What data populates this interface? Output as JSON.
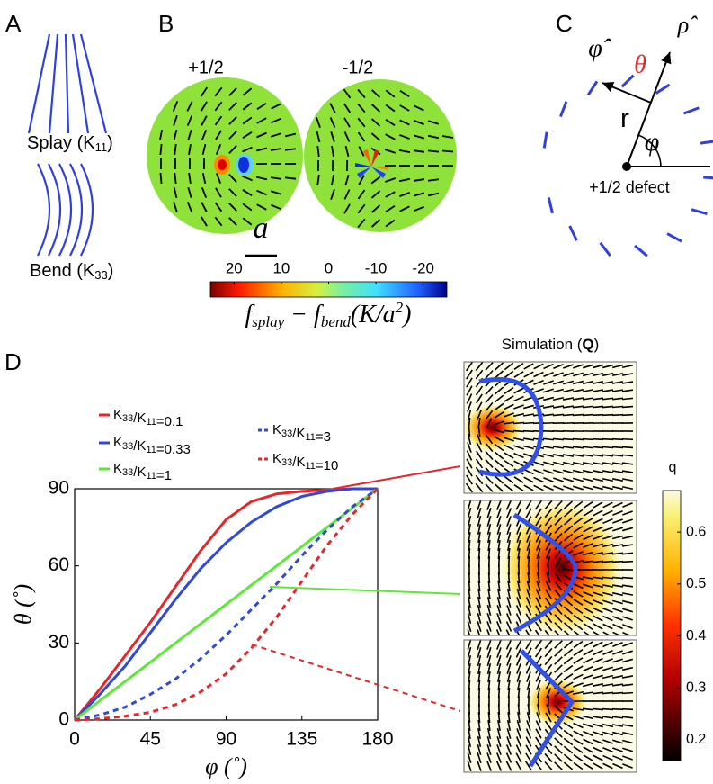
{
  "panel_a": {
    "label": "A",
    "splay_label": [
      "Splay (K",
      "11",
      ")"
    ],
    "bend_label": [
      "Bend (K",
      "33",
      ")"
    ]
  },
  "panel_b": {
    "label": "B",
    "titles": [
      "+1/2",
      "-1/2"
    ],
    "scale_label": "a",
    "colorbar": {
      "ticks": [
        20,
        10,
        0,
        -10,
        -20
      ],
      "lim": [
        25,
        -25
      ],
      "label": [
        "f",
        "splay",
        " − f",
        "bend",
        "(K/a",
        "2",
        ")"
      ]
    }
  },
  "panel_c": {
    "label": "C",
    "phi_hat": "φ̂",
    "theta": "θ",
    "rho_hat": "ρ̂",
    "r": "r",
    "phi": "φ",
    "defect": "+1/2 defect"
  },
  "panel_d": {
    "label": "D",
    "simulation_title": [
      "Simulation (",
      "Q",
      ")"
    ],
    "colorbar": {
      "label": "q",
      "ticks": [
        0.2,
        0.3,
        0.4,
        0.5,
        0.6
      ],
      "lim": [
        0.16,
        0.68
      ]
    }
  },
  "chart_data": {
    "type": "line",
    "xlabel": "φ (˚)",
    "ylabel": "θ (˚)",
    "x": [
      0,
      15,
      30,
      45,
      60,
      75,
      90,
      105,
      120,
      135,
      150,
      165,
      180
    ],
    "xlim": [
      0,
      180
    ],
    "xticks": [
      0,
      45,
      90,
      135,
      180
    ],
    "ylim": [
      0,
      90
    ],
    "yticks": [
      0,
      30,
      60,
      90
    ],
    "series": [
      {
        "name": "K33/K11=0.1",
        "color": "#e8262a",
        "style": "solid",
        "values": [
          0,
          12,
          25,
          38,
          52,
          66,
          78,
          85,
          88,
          89,
          89.5,
          90,
          90
        ]
      },
      {
        "name": "K33/K11=0.33",
        "color": "#2f4ad8",
        "style": "solid",
        "values": [
          0,
          10,
          21,
          34,
          47,
          59,
          69,
          77,
          83,
          87,
          89,
          90,
          90
        ]
      },
      {
        "name": "K33/K11=1",
        "color": "#5ee83a",
        "style": "solid",
        "values": [
          0,
          7.5,
          15,
          22.5,
          30,
          37.5,
          45,
          52.5,
          60,
          67.5,
          75,
          82.5,
          90
        ]
      },
      {
        "name": "K33/K11=3",
        "color": "#2f4ad8",
        "style": "dashed",
        "values": [
          0,
          2,
          5,
          10,
          16,
          24,
          33,
          43,
          53,
          64,
          74,
          83,
          90
        ]
      },
      {
        "name": "K33/K11=10",
        "color": "#e8262a",
        "style": "dashed",
        "values": [
          0,
          0.5,
          1.5,
          3,
          6,
          11,
          18,
          28,
          40,
          54,
          68,
          80,
          90
        ]
      }
    ]
  }
}
